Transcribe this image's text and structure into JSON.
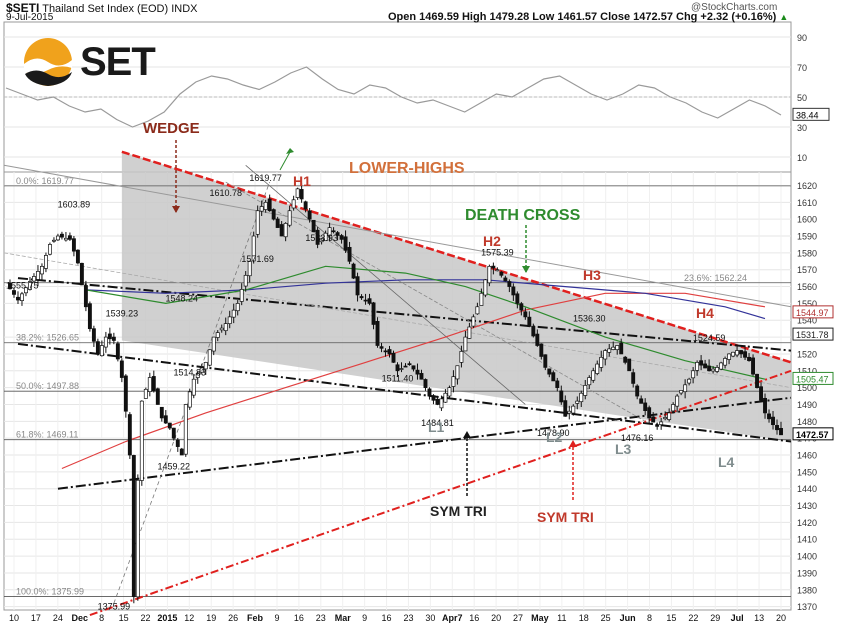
{
  "header": {
    "symbol": "$SETI",
    "name": "Thailand Set Index (EOD)",
    "exchange": "INDX",
    "date": "9-Jul-2015",
    "ohlc": "Open 1469.59  High 1479.28  Low 1461.57  Close 1472.57  Chg +2.32 (+0.16%)",
    "arrow": "▲",
    "copyright": "@StockCharts.com"
  },
  "logo": {
    "text": "SET",
    "color": "#f0a21c"
  },
  "colors": {
    "wedge_fill": "#c8c8c8",
    "red": "#e0201e",
    "dark_red": "#8b2a1a",
    "orange": "#d2703b",
    "green": "#2e8b2e",
    "black": "#111111",
    "grid": "#e6e6e6"
  },
  "chart_data": [
    {
      "type": "line",
      "panel": "indicator",
      "ylim": [
        0,
        100
      ],
      "yticks": [
        "90",
        "70",
        "50",
        "30",
        "10"
      ],
      "last_value": "38.44",
      "series": [
        {
          "values": [
            56,
            52,
            48,
            50,
            44,
            40,
            42,
            35,
            30,
            34,
            40,
            52,
            60,
            64,
            62,
            58,
            55,
            60,
            66,
            70,
            62,
            55,
            52,
            58,
            56,
            50,
            46,
            48,
            44,
            40,
            46,
            52,
            50,
            56,
            62,
            64,
            58,
            52,
            48,
            52,
            58,
            56,
            50,
            46,
            40,
            36,
            42,
            48,
            44,
            38
          ]
        }
      ]
    },
    {
      "type": "candlestick",
      "panel": "price",
      "ylim": [
        1368,
        1628
      ],
      "yticks": [
        "1620",
        "1610",
        "1600",
        "1590",
        "1580",
        "1570",
        "1560",
        "1550",
        "1540",
        "1530",
        "1520",
        "1510",
        "1500",
        "1490",
        "1480",
        "1470",
        "1460",
        "1450",
        "1440",
        "1430",
        "1420",
        "1410",
        "1400",
        "1390",
        "1380",
        "1370"
      ],
      "xticks": [
        "10",
        "17",
        "24",
        "Dec",
        "8",
        "15",
        "22",
        "2015",
        "12",
        "19",
        "26",
        "Feb",
        "9",
        "16",
        "23",
        "Mar",
        "9",
        "16",
        "23",
        "30",
        "Apr7",
        "16",
        "20",
        "27",
        "May",
        "11",
        "18",
        "25",
        "Jun",
        "8",
        "15",
        "22",
        "29",
        "Jul",
        "13",
        "20"
      ],
      "close_path": [
        [
          0,
          1562
        ],
        [
          3,
          1552
        ],
        [
          6,
          1563
        ],
        [
          9,
          1572
        ],
        [
          11,
          1585
        ],
        [
          13,
          1590
        ],
        [
          16,
          1588
        ],
        [
          18,
          1574
        ],
        [
          20,
          1548
        ],
        [
          21,
          1535
        ],
        [
          23,
          1520
        ],
        [
          25,
          1530
        ],
        [
          27,
          1528
        ],
        [
          29,
          1506
        ],
        [
          30,
          1486
        ],
        [
          31,
          1460
        ],
        [
          32,
          1376
        ],
        [
          33,
          1445
        ],
        [
          34,
          1492
        ],
        [
          36,
          1506
        ],
        [
          39,
          1482
        ],
        [
          41,
          1476
        ],
        [
          42,
          1470
        ],
        [
          44,
          1460
        ],
        [
          45,
          1490
        ],
        [
          47,
          1505
        ],
        [
          50,
          1515
        ],
        [
          52,
          1530
        ],
        [
          55,
          1538
        ],
        [
          58,
          1550
        ],
        [
          61,
          1575
        ],
        [
          63,
          1605
        ],
        [
          65,
          1610
        ],
        [
          67,
          1600
        ],
        [
          69,
          1590
        ],
        [
          71,
          1605
        ],
        [
          73,
          1618
        ],
        [
          76,
          1600
        ],
        [
          78,
          1585
        ],
        [
          81,
          1595
        ],
        [
          84,
          1588
        ],
        [
          86,
          1575
        ],
        [
          88,
          1555
        ],
        [
          91,
          1550
        ],
        [
          93,
          1525
        ],
        [
          96,
          1520
        ],
        [
          98,
          1510
        ],
        [
          101,
          1514
        ],
        [
          104,
          1505
        ],
        [
          106,
          1495
        ],
        [
          108,
          1490
        ],
        [
          111,
          1500
        ],
        [
          113,
          1513
        ],
        [
          115,
          1530
        ],
        [
          118,
          1548
        ],
        [
          121,
          1572
        ],
        [
          123,
          1570
        ],
        [
          126,
          1560
        ],
        [
          128,
          1550
        ],
        [
          130,
          1542
        ],
        [
          133,
          1525
        ],
        [
          135,
          1512
        ],
        [
          138,
          1500
        ],
        [
          140,
          1483
        ],
        [
          143,
          1492
        ],
        [
          146,
          1506
        ],
        [
          148,
          1514
        ],
        [
          150,
          1522
        ],
        [
          153,
          1525
        ],
        [
          156,
          1510
        ],
        [
          158,
          1495
        ],
        [
          161,
          1482
        ],
        [
          163,
          1477
        ],
        [
          166,
          1485
        ],
        [
          168,
          1495
        ],
        [
          171,
          1505
        ],
        [
          173,
          1515
        ],
        [
          176,
          1510
        ],
        [
          178,
          1512
        ],
        [
          181,
          1520
        ],
        [
          183,
          1522
        ],
        [
          186,
          1516
        ],
        [
          188,
          1500
        ],
        [
          190,
          1485
        ],
        [
          192,
          1478
        ],
        [
          194,
          1472
        ]
      ],
      "price_labels": [
        {
          "label": "1603.89",
          "x": 17,
          "y": 1603.89
        },
        {
          "label": "1555.75",
          "x": 0,
          "y": 1555.75
        },
        {
          "label": "1539.23",
          "x": 29,
          "y": 1539.23
        },
        {
          "label": "1548.24",
          "x": 44,
          "y": 1548.24
        },
        {
          "label": "1514.83",
          "x": 46,
          "y": 1514.83
        },
        {
          "label": "1610.78",
          "x": 55,
          "y": 1610.78
        },
        {
          "label": "1619.77",
          "x": 65,
          "y": 1619.77
        },
        {
          "label": "1571.69",
          "x": 63,
          "y": 1571.69
        },
        {
          "label": "1583.93",
          "x": 79,
          "y": 1583.93
        },
        {
          "label": "1511.40",
          "x": 98,
          "y": 1511.4
        },
        {
          "label": "1484.81",
          "x": 108,
          "y": 1484.81
        },
        {
          "label": "1575.39",
          "x": 123,
          "y": 1575.39
        },
        {
          "label": "1478.90",
          "x": 137,
          "y": 1478.9
        },
        {
          "label": "1536.30",
          "x": 146,
          "y": 1536.3
        },
        {
          "label": "1476.16",
          "x": 158,
          "y": 1476.16
        },
        {
          "label": "1524.59",
          "x": 176,
          "y": 1524.59
        },
        {
          "label": "1459.22",
          "x": 42,
          "y": 1459.22
        },
        {
          "label": "1375.99",
          "x": 27,
          "y": 1375.99
        }
      ],
      "fib_levels": [
        {
          "label": "0.0%: 1619.77",
          "y": 1619.77
        },
        {
          "label": "23.6%: 1562.24",
          "y": 1562.24
        },
        {
          "label": "38.2%: 1526.65",
          "y": 1526.65
        },
        {
          "label": "50.0%: 1497.88",
          "y": 1497.88
        },
        {
          "label": "61.8%: 1469.11",
          "y": 1469.11
        },
        {
          "label": "100.0%: 1375.99",
          "y": 1375.99
        }
      ],
      "right_values": [
        {
          "label": "1544.97",
          "y": 1544.97,
          "color": "#b03030"
        },
        {
          "label": "1531.78",
          "y": 1531.78,
          "color": "#222222"
        },
        {
          "label": "1505.47",
          "y": 1505.47,
          "color": "#2e8b2e"
        },
        {
          "label": "1472.57",
          "y": 1472.57,
          "color": "#000000"
        }
      ],
      "annotations": [
        {
          "text": "WEDGE",
          "color": "#8b2a1a"
        },
        {
          "text": "LOWER-HIGHS",
          "color": "#d2703b"
        },
        {
          "text": "DEATH CROSS",
          "color": "#2e8b2e"
        },
        {
          "text": "H1",
          "color": "#c0392b"
        },
        {
          "text": "H2",
          "color": "#c0392b"
        },
        {
          "text": "H3",
          "color": "#c0392b"
        },
        {
          "text": "H4",
          "color": "#c0392b"
        },
        {
          "text": "L1",
          "color": "#7f8c8d"
        },
        {
          "text": "L2",
          "color": "#7f8c8d"
        },
        {
          "text": "L3",
          "color": "#7f8c8d"
        },
        {
          "text": "L4",
          "color": "#7f8c8d"
        },
        {
          "text": "SYM TRI",
          "color": "#222222"
        },
        {
          "text": "SYM TRI",
          "color": "#c0392b"
        }
      ]
    }
  ]
}
